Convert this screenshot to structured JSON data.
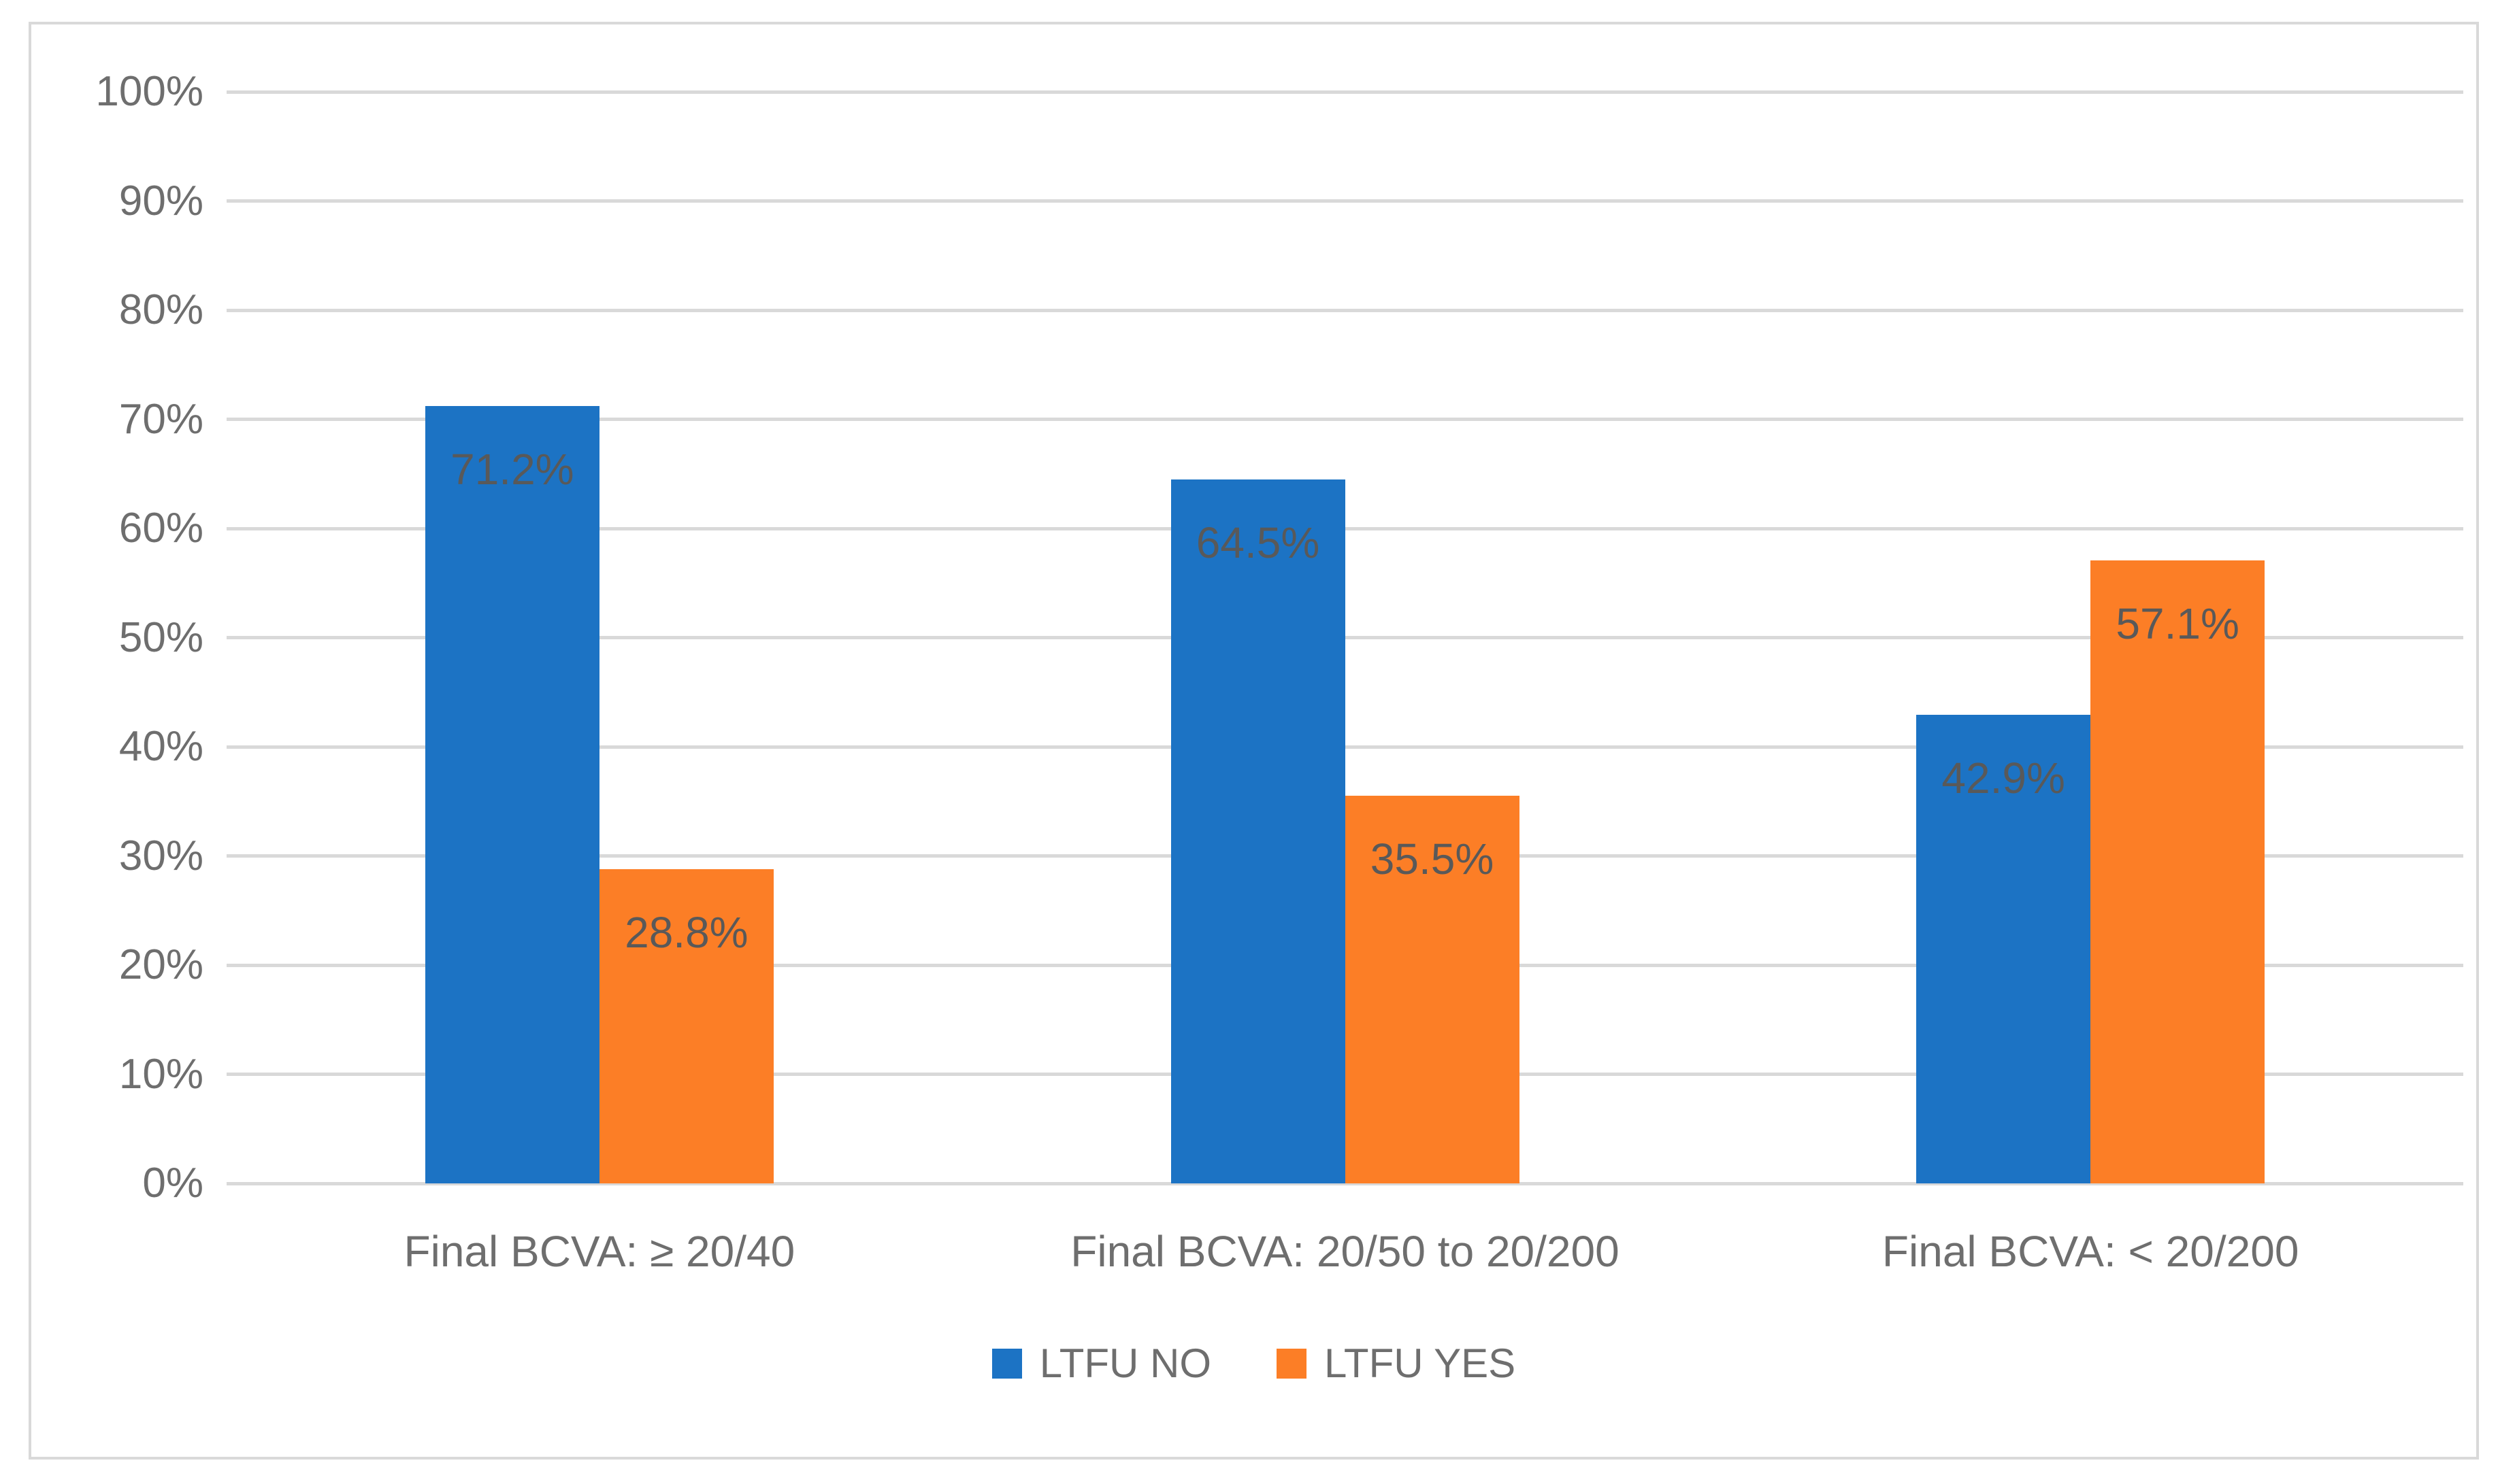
{
  "figure": {
    "background": "#ffffff",
    "frame_border_color": "#d9d9d9"
  },
  "chart_data": {
    "type": "bar",
    "title": "",
    "xlabel": "",
    "ylabel": "",
    "categories": [
      "Final BCVA: ≥ 20/40",
      "Final BCVA: 20/50 to 20/200",
      "Final BCVA: < 20/200"
    ],
    "series": [
      {
        "name": "LTFU NO",
        "color": "#1c73c4",
        "values": [
          71.2,
          64.5,
          42.9
        ],
        "labels": [
          "71.2%",
          "64.5%",
          "42.9%"
        ]
      },
      {
        "name": "LTFU YES",
        "color": "#fc7e26",
        "values": [
          28.8,
          35.5,
          57.1
        ],
        "labels": [
          "28.8%",
          "35.5%",
          "57.1%"
        ]
      }
    ],
    "ylim": [
      0,
      100
    ],
    "ytick_values": [
      0,
      10,
      20,
      30,
      40,
      50,
      60,
      70,
      80,
      90,
      100
    ],
    "yticks": [
      "0%",
      "10%",
      "20%",
      "30%",
      "40%",
      "50%",
      "60%",
      "70%",
      "80%",
      "90%",
      "100%"
    ],
    "grid": true,
    "gridline_color": "#d9d9d9",
    "axis_text_color": "#6e6e6e",
    "data_label_color": "#595959",
    "legend_position": "bottom",
    "legend_text_color": "#6e6e6e"
  }
}
